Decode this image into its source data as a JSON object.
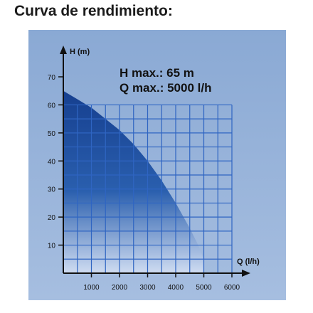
{
  "page": {
    "title": "Curva de rendimiento:"
  },
  "chart_data": {
    "type": "area",
    "title": "",
    "xlabel": "Q (l/h)",
    "ylabel": "H (m)",
    "xlim": [
      0,
      6000
    ],
    "ylim": [
      0,
      70
    ],
    "x_ticks": [
      1000,
      2000,
      3000,
      4000,
      5000,
      6000
    ],
    "x_tick_labels": [
      "1000",
      "2000",
      "3000",
      "4000",
      "5000",
      "6000"
    ],
    "y_ticks": [
      10,
      20,
      30,
      40,
      50,
      60,
      70
    ],
    "y_tick_labels": [
      "10",
      "20",
      "30",
      "40",
      "50",
      "60",
      "70"
    ],
    "grid": true,
    "annotations": [
      "H max.: 65 m",
      "Q max.: 5000 l/h"
    ],
    "series": [
      {
        "x": [
          0,
          500,
          1000,
          1500,
          2000,
          2500,
          3000,
          3500,
          4000,
          4500,
          4800,
          5000,
          5000
        ],
        "y": [
          65,
          62,
          59,
          55,
          51,
          46,
          40,
          33,
          25,
          16,
          10,
          5,
          0
        ]
      }
    ],
    "colors": {
      "panel": "#95b1d8",
      "grid": "#2f65c2",
      "fill_top": "#163f8f",
      "fill_bottom": "#cfdcf1",
      "axis": "#111111"
    }
  }
}
